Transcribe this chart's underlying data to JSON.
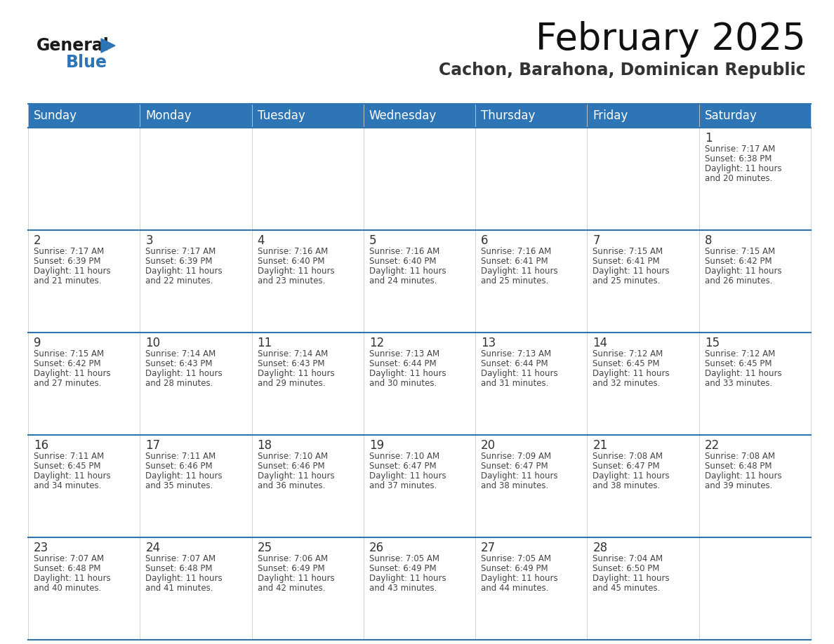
{
  "title": "February 2025",
  "subtitle": "Cachon, Barahona, Dominican Republic",
  "header_bg_color": "#2e75b6",
  "header_text_color": "#ffffff",
  "day_names": [
    "Sunday",
    "Monday",
    "Tuesday",
    "Wednesday",
    "Thursday",
    "Friday",
    "Saturday"
  ],
  "bg_color": "#ffffff",
  "cell_bg": "#ffffff",
  "grid_color": "#2e75b6",
  "sep_line_color": "#2e75b6",
  "day_num_color": "#333333",
  "cell_text_color": "#444444",
  "calendar": [
    [
      null,
      null,
      null,
      null,
      null,
      null,
      {
        "day": 1,
        "sunrise": "7:17 AM",
        "sunset": "6:38 PM",
        "daylight": "11 hours and 20 minutes."
      }
    ],
    [
      {
        "day": 2,
        "sunrise": "7:17 AM",
        "sunset": "6:39 PM",
        "daylight": "11 hours and 21 minutes."
      },
      {
        "day": 3,
        "sunrise": "7:17 AM",
        "sunset": "6:39 PM",
        "daylight": "11 hours and 22 minutes."
      },
      {
        "day": 4,
        "sunrise": "7:16 AM",
        "sunset": "6:40 PM",
        "daylight": "11 hours and 23 minutes."
      },
      {
        "day": 5,
        "sunrise": "7:16 AM",
        "sunset": "6:40 PM",
        "daylight": "11 hours and 24 minutes."
      },
      {
        "day": 6,
        "sunrise": "7:16 AM",
        "sunset": "6:41 PM",
        "daylight": "11 hours and 25 minutes."
      },
      {
        "day": 7,
        "sunrise": "7:15 AM",
        "sunset": "6:41 PM",
        "daylight": "11 hours and 25 minutes."
      },
      {
        "day": 8,
        "sunrise": "7:15 AM",
        "sunset": "6:42 PM",
        "daylight": "11 hours and 26 minutes."
      }
    ],
    [
      {
        "day": 9,
        "sunrise": "7:15 AM",
        "sunset": "6:42 PM",
        "daylight": "11 hours and 27 minutes."
      },
      {
        "day": 10,
        "sunrise": "7:14 AM",
        "sunset": "6:43 PM",
        "daylight": "11 hours and 28 minutes."
      },
      {
        "day": 11,
        "sunrise": "7:14 AM",
        "sunset": "6:43 PM",
        "daylight": "11 hours and 29 minutes."
      },
      {
        "day": 12,
        "sunrise": "7:13 AM",
        "sunset": "6:44 PM",
        "daylight": "11 hours and 30 minutes."
      },
      {
        "day": 13,
        "sunrise": "7:13 AM",
        "sunset": "6:44 PM",
        "daylight": "11 hours and 31 minutes."
      },
      {
        "day": 14,
        "sunrise": "7:12 AM",
        "sunset": "6:45 PM",
        "daylight": "11 hours and 32 minutes."
      },
      {
        "day": 15,
        "sunrise": "7:12 AM",
        "sunset": "6:45 PM",
        "daylight": "11 hours and 33 minutes."
      }
    ],
    [
      {
        "day": 16,
        "sunrise": "7:11 AM",
        "sunset": "6:45 PM",
        "daylight": "11 hours and 34 minutes."
      },
      {
        "day": 17,
        "sunrise": "7:11 AM",
        "sunset": "6:46 PM",
        "daylight": "11 hours and 35 minutes."
      },
      {
        "day": 18,
        "sunrise": "7:10 AM",
        "sunset": "6:46 PM",
        "daylight": "11 hours and 36 minutes."
      },
      {
        "day": 19,
        "sunrise": "7:10 AM",
        "sunset": "6:47 PM",
        "daylight": "11 hours and 37 minutes."
      },
      {
        "day": 20,
        "sunrise": "7:09 AM",
        "sunset": "6:47 PM",
        "daylight": "11 hours and 38 minutes."
      },
      {
        "day": 21,
        "sunrise": "7:08 AM",
        "sunset": "6:47 PM",
        "daylight": "11 hours and 38 minutes."
      },
      {
        "day": 22,
        "sunrise": "7:08 AM",
        "sunset": "6:48 PM",
        "daylight": "11 hours and 39 minutes."
      }
    ],
    [
      {
        "day": 23,
        "sunrise": "7:07 AM",
        "sunset": "6:48 PM",
        "daylight": "11 hours and 40 minutes."
      },
      {
        "day": 24,
        "sunrise": "7:07 AM",
        "sunset": "6:48 PM",
        "daylight": "11 hours and 41 minutes."
      },
      {
        "day": 25,
        "sunrise": "7:06 AM",
        "sunset": "6:49 PM",
        "daylight": "11 hours and 42 minutes."
      },
      {
        "day": 26,
        "sunrise": "7:05 AM",
        "sunset": "6:49 PM",
        "daylight": "11 hours and 43 minutes."
      },
      {
        "day": 27,
        "sunrise": "7:05 AM",
        "sunset": "6:49 PM",
        "daylight": "11 hours and 44 minutes."
      },
      {
        "day": 28,
        "sunrise": "7:04 AM",
        "sunset": "6:50 PM",
        "daylight": "11 hours and 45 minutes."
      },
      null
    ]
  ],
  "logo_text1": "General",
  "logo_text2": "Blue",
  "logo_color1": "#1a1a1a",
  "logo_color2": "#2e75b6",
  "logo_triangle_color": "#2e75b6",
  "title_fontsize": 38,
  "subtitle_fontsize": 17,
  "header_fontsize": 12,
  "day_num_fontsize": 12,
  "cell_fontsize": 8.5
}
